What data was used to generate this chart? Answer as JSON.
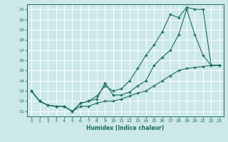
{
  "title": "",
  "xlabel": "Humidex (Indice chaleur)",
  "bg_color": "#cce8e8",
  "grid_color": "#ffffff",
  "line_color": "#1a6b5e",
  "xlim": [
    -0.5,
    23.5
  ],
  "ylim": [
    10.5,
    21.5
  ],
  "xticks": [
    0,
    1,
    2,
    3,
    4,
    5,
    6,
    7,
    8,
    9,
    10,
    11,
    12,
    13,
    14,
    15,
    16,
    17,
    18,
    19,
    20,
    21,
    22,
    23
  ],
  "yticks": [
    11,
    12,
    13,
    14,
    15,
    16,
    17,
    18,
    19,
    20,
    21
  ],
  "line1_x": [
    0,
    1,
    2,
    3,
    4,
    5,
    6,
    7,
    8,
    9,
    10,
    11,
    12,
    13,
    14,
    15,
    16,
    17,
    18,
    19,
    20,
    21,
    22,
    23
  ],
  "line1_y": [
    13.0,
    12.0,
    11.6,
    11.5,
    11.5,
    11.0,
    11.8,
    12.0,
    12.2,
    13.8,
    12.6,
    12.6,
    12.9,
    13.5,
    14.0,
    15.5,
    16.3,
    17.0,
    18.5,
    21.0,
    18.5,
    16.5,
    15.5,
    15.5
  ],
  "line2_x": [
    0,
    1,
    2,
    3,
    4,
    5,
    6,
    7,
    8,
    9,
    10,
    11,
    12,
    13,
    14,
    15,
    16,
    17,
    18,
    19,
    20,
    21,
    22,
    23
  ],
  "line2_y": [
    13.0,
    12.0,
    11.6,
    11.5,
    11.5,
    11.0,
    11.8,
    12.0,
    12.5,
    13.5,
    13.0,
    13.2,
    14.0,
    15.2,
    16.5,
    17.5,
    18.8,
    20.5,
    20.2,
    21.2,
    21.0,
    21.0,
    15.5,
    15.5
  ],
  "line3_x": [
    0,
    1,
    2,
    3,
    4,
    5,
    6,
    7,
    8,
    9,
    10,
    11,
    12,
    13,
    14,
    15,
    16,
    17,
    18,
    19,
    20,
    21,
    22,
    23
  ],
  "line3_y": [
    13.0,
    12.0,
    11.6,
    11.5,
    11.5,
    11.0,
    11.5,
    11.5,
    11.8,
    12.0,
    12.0,
    12.2,
    12.5,
    12.8,
    13.0,
    13.5,
    14.0,
    14.5,
    15.0,
    15.2,
    15.3,
    15.4,
    15.5,
    15.5
  ]
}
